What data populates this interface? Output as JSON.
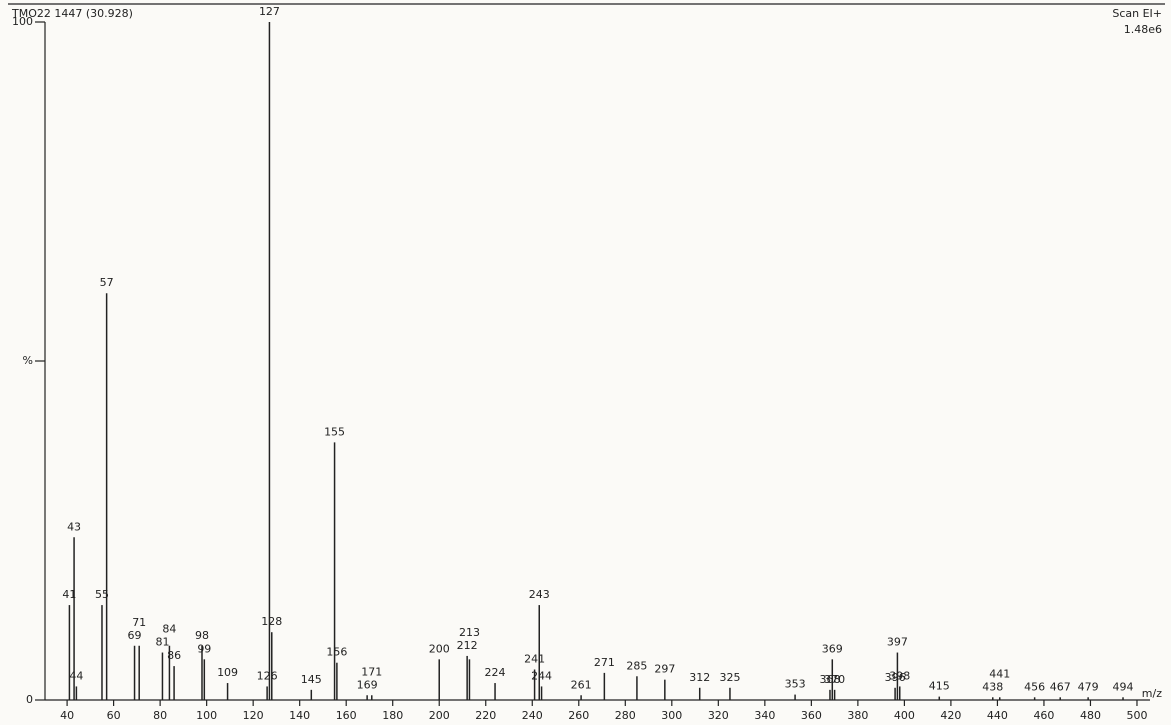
{
  "chart_data": {
    "type": "stick",
    "title": "TMO22 1447 (30.928)",
    "scan_label": "Scan EI+",
    "intensity_label": "1.48e6",
    "x_label": "m/z",
    "x": [
      41,
      43,
      44,
      55,
      57,
      69,
      71,
      81,
      84,
      86,
      98,
      99,
      109,
      126,
      127,
      128,
      145,
      155,
      156,
      169,
      171,
      200,
      212,
      213,
      224,
      241,
      243,
      244,
      261,
      271,
      285,
      297,
      312,
      325,
      353,
      368,
      369,
      370,
      396,
      397,
      398,
      415,
      438,
      441,
      456,
      467,
      479,
      494
    ],
    "values": [
      14,
      24,
      2,
      14,
      60,
      8,
      8,
      7,
      8,
      5,
      8,
      6,
      2.5,
      2,
      100,
      10,
      1.5,
      38,
      5.5,
      0.7,
      0.7,
      6,
      6.5,
      6,
      2.5,
      4.5,
      14,
      2,
      0.7,
      4,
      3.5,
      3,
      1.8,
      1.8,
      0.8,
      1.5,
      6,
      1.5,
      1.8,
      7,
      2,
      0.5,
      0.4,
      0.4,
      0.4,
      0.4,
      0.4,
      0.4
    ],
    "color": "#222222",
    "xlim": [
      30.5,
      505.6
    ],
    "ylim": [
      0,
      100
    ],
    "xticks": [
      40,
      60,
      80,
      100,
      120,
      140,
      160,
      180,
      200,
      220,
      240,
      260,
      280,
      300,
      320,
      340,
      360,
      380,
      400,
      420,
      440,
      460,
      480,
      500
    ],
    "yticks": [
      0,
      {
        "value": 50,
        "label": "%"
      },
      100
    ]
  }
}
